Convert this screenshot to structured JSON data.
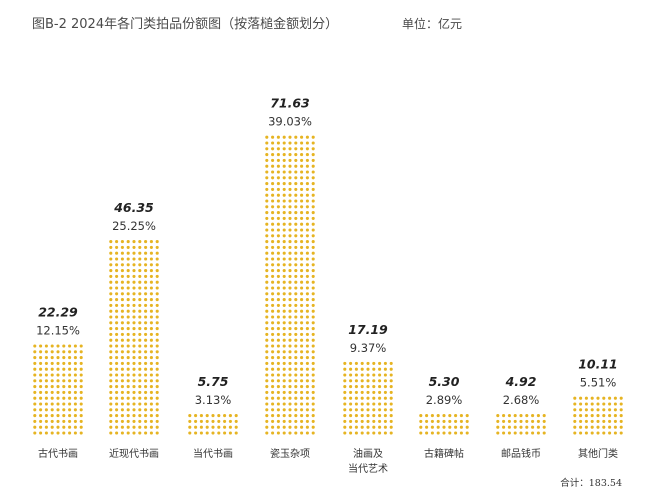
{
  "chart_data": {
    "type": "bar",
    "title": "图B-2   2024年各门类拍品份额图（按落槌金额划分）",
    "unit_label": "单位：亿元",
    "categories": [
      [
        "古代书画"
      ],
      [
        "近现代书画"
      ],
      [
        "当代书画"
      ],
      [
        "瓷玉杂项"
      ],
      [
        "油画及",
        "当代艺术"
      ],
      [
        "古籍碑帖"
      ],
      [
        "邮品钱币"
      ],
      [
        "其他门类"
      ]
    ],
    "values": [
      22.29,
      46.35,
      5.75,
      71.63,
      17.19,
      5.3,
      4.92,
      10.11
    ],
    "value_labels": [
      "22.29",
      "46.35",
      "5.75",
      "71.63",
      "17.19",
      "5.30",
      "4.92",
      "10.11"
    ],
    "percent_labels": [
      "12.15%",
      "25.25%",
      "3.13%",
      "39.03%",
      "9.37%",
      "2.89%",
      "2.68%",
      "5.51%"
    ],
    "total_label": "合计：183.54",
    "bar_color": "#e6b422",
    "ylim": [
      0,
      71.63
    ]
  }
}
